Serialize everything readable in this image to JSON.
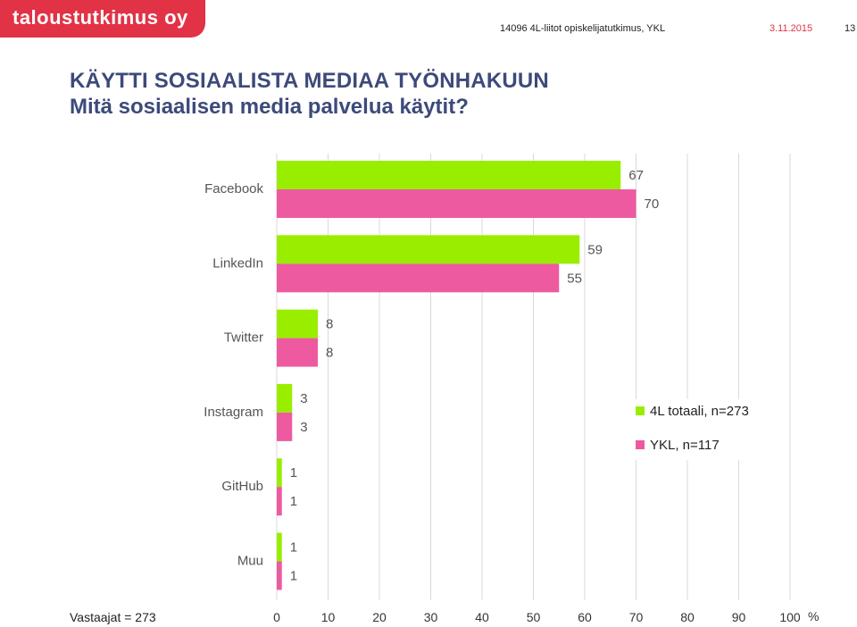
{
  "brand": "taloustutkimus oy",
  "header": {
    "project": "14096 4L-liitot opiskelijatutkimus, YKL",
    "date": "3.11.2015",
    "page": "13"
  },
  "title": {
    "main": "KÄYTTI SOSIAALISTA MEDIAA TYÖNHAKUUN",
    "sub": "Mitä sosiaalisen media palvelua käytit?"
  },
  "footer": "Vastaajat = 273",
  "colors": {
    "series1": "#99ee00",
    "series2": "#ee5aa0",
    "brand": "#e23246",
    "title": "#3d4a7a"
  },
  "chart_data": {
    "type": "bar",
    "orientation": "horizontal",
    "categories": [
      "Facebook",
      "LinkedIn",
      "Twitter",
      "Instagram",
      "GitHub",
      "Muu"
    ],
    "series": [
      {
        "name": "4L totaali, n=273",
        "values": [
          67,
          59,
          8,
          3,
          1,
          1
        ]
      },
      {
        "name": "YKL, n=117",
        "values": [
          70,
          55,
          8,
          3,
          1,
          1
        ]
      }
    ],
    "xlim": [
      0,
      100
    ],
    "xticks": [
      "0",
      "10",
      "20",
      "30",
      "40",
      "50",
      "60",
      "70",
      "80",
      "90",
      "100"
    ],
    "xunit": "%",
    "grid": true,
    "legend": "right"
  }
}
